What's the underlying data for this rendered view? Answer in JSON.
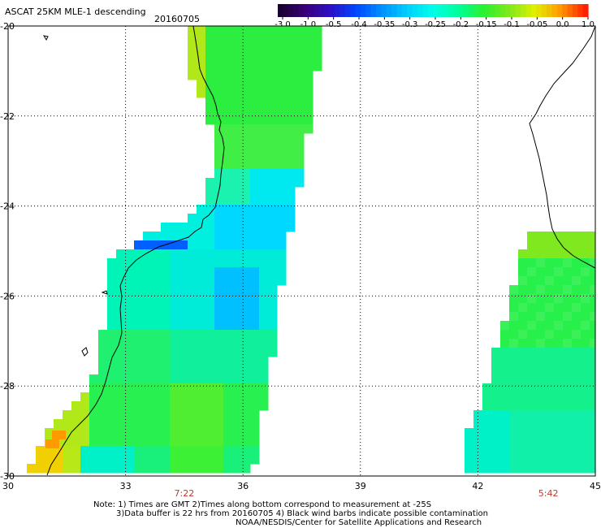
{
  "header": {
    "title": "ASCAT 25KM MLE-1 descending",
    "date": "20160705"
  },
  "colorbar": {
    "labels": [
      "-3.0",
      "-1.0",
      "-0.5",
      "-0.4",
      "-0.35",
      "-0.3",
      "-0.25",
      "-0.2",
      "-0.15",
      "-0.1",
      "-0.05",
      "0.0",
      "1.0"
    ],
    "colors": [
      "#1a0030",
      "#3a007a",
      "#2a10c8",
      "#0048ff",
      "#0090ff",
      "#00d0ff",
      "#00ffe8",
      "#00ff9a",
      "#28f030",
      "#80e81c",
      "#e0f000",
      "#ff9a00",
      "#ff2000"
    ]
  },
  "axes": {
    "lon_ticks": [
      "30",
      "33",
      "36",
      "39",
      "42",
      "45"
    ],
    "lat_ticks": [
      "-20",
      "-22",
      "-24",
      "-26",
      "-28",
      "-30"
    ],
    "lon_range": [
      30,
      45
    ],
    "lat_range": [
      -20,
      -30
    ],
    "grid": "dotted"
  },
  "pass_times": [
    {
      "lon": 34.5,
      "label": "7:22"
    },
    {
      "lon": 43.8,
      "label": "5:42"
    }
  ],
  "notes": {
    "line1": "Note: 1) Times are GMT 2)Times along bottom correspond to measurement at -25S",
    "line2": "3)Data buffer is 22 hrs from 20160705 4) Black wind barbs indicate possible contamination",
    "line3": "NOAA/NESDIS/Center for Satellite Applications and Research"
  }
}
